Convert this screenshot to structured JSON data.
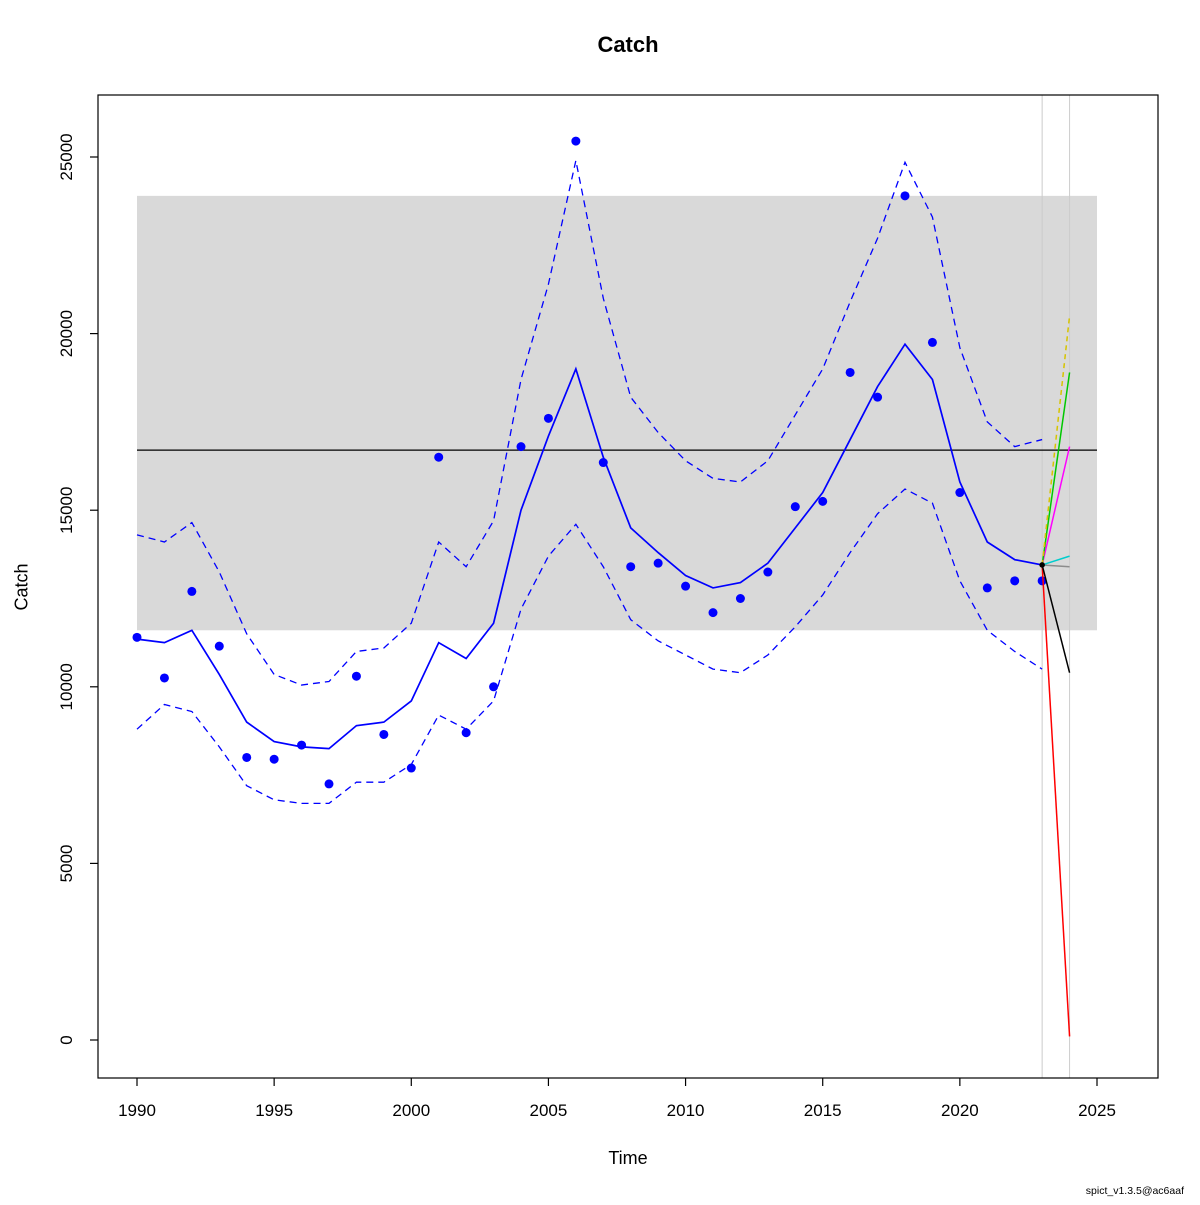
{
  "title": "Catch",
  "xlabel": "Time",
  "ylabel": "Catch",
  "watermark": "spict_v1.3.5@ac6aaf",
  "chart_data": {
    "type": "line",
    "title": "Catch",
    "xlabel": "Time",
    "ylabel": "Catch",
    "xlim": [
      1988.6,
      2027.2
    ],
    "ylim": [
      0,
      26500
    ],
    "grid": false,
    "legend": "none",
    "x_ticks": [
      1990,
      1995,
      2000,
      2005,
      2010,
      2015,
      2020,
      2025
    ],
    "y_ticks": [
      0,
      5000,
      10000,
      15000,
      20000,
      25000
    ],
    "years": [
      1990,
      1991,
      1992,
      1993,
      1994,
      1995,
      1996,
      1997,
      1998,
      1999,
      2000,
      2001,
      2002,
      2003,
      2004,
      2005,
      2006,
      2007,
      2008,
      2009,
      2010,
      2011,
      2012,
      2013,
      2014,
      2015,
      2016,
      2017,
      2018,
      2019,
      2020,
      2021,
      2022,
      2023
    ],
    "series": [
      {
        "name": "ci-upper",
        "type": "line",
        "style": "dashed",
        "color": "#0000ff",
        "values": [
          14300,
          14100,
          14650,
          13250,
          11500,
          10350,
          10050,
          10150,
          11000,
          11100,
          11800,
          14100,
          13400,
          14700,
          18700,
          21400,
          24900,
          21000,
          18200,
          17200,
          16400,
          15900,
          15800,
          16400,
          17700,
          19000,
          20900,
          22700,
          24850,
          23300,
          19600,
          17500,
          16800,
          17000
        ]
      },
      {
        "name": "ci-lower",
        "type": "line",
        "style": "dashed",
        "color": "#0000ff",
        "values": [
          8800,
          9500,
          9300,
          8300,
          7200,
          6800,
          6700,
          6700,
          7300,
          7300,
          7800,
          9200,
          8800,
          9600,
          12200,
          13700,
          14600,
          13400,
          11900,
          11300,
          10900,
          10500,
          10400,
          10900,
          11700,
          12600,
          13800,
          14900,
          15600,
          15200,
          13000,
          11600,
          11000,
          10500
        ]
      },
      {
        "name": "estimated-catch",
        "type": "line",
        "style": "solid",
        "color": "#0000ff",
        "values": [
          11350,
          11250,
          11600,
          10350,
          9000,
          8450,
          8300,
          8250,
          8900,
          9000,
          9600,
          11250,
          10800,
          11800,
          15000,
          17100,
          19000,
          16500,
          14500,
          13800,
          13150,
          12800,
          12950,
          13500,
          14500,
          15500,
          17000,
          18500,
          19700,
          18700,
          15800,
          14100,
          13600,
          13450
        ]
      },
      {
        "name": "observed-catch",
        "type": "points",
        "color": "#0000ff",
        "values": [
          11400,
          10250,
          12700,
          11150,
          8000,
          7950,
          8350,
          7250,
          10300,
          8650,
          7700,
          16500,
          8700,
          10000,
          16800,
          17600,
          25450,
          16350,
          13400,
          13500,
          12850,
          12100,
          12500,
          13250,
          15100,
          15250,
          18900,
          18200,
          23900,
          19750,
          15500,
          12800,
          13000,
          13000
        ]
      }
    ],
    "shaded_band": {
      "x": [
        1990,
        2025
      ],
      "y": [
        11600,
        23900
      ],
      "color": "#d9d9d9"
    },
    "reference_line": {
      "x": [
        1990,
        2025
      ],
      "y": 16700,
      "color": "#000000"
    },
    "vertical_guides": {
      "x": [
        2023,
        2024
      ],
      "color": "#cccccc"
    },
    "forecast": {
      "x": [
        2023,
        2024
      ],
      "start_value": 13450,
      "scenarios": [
        {
          "name": "scenario-red",
          "color": "#ff0000",
          "style": "solid",
          "end_value": 100
        },
        {
          "name": "scenario-black",
          "color": "#000000",
          "style": "solid",
          "end_value": 10400
        },
        {
          "name": "scenario-gray",
          "color": "#8c8c8c",
          "style": "solid",
          "end_value": 13400
        },
        {
          "name": "scenario-cyan",
          "color": "#00cdcd",
          "style": "solid",
          "end_value": 13700
        },
        {
          "name": "scenario-magenta",
          "color": "#ff00ff",
          "style": "solid",
          "end_value": 16800
        },
        {
          "name": "scenario-green",
          "color": "#00c800",
          "style": "solid",
          "end_value": 18900
        },
        {
          "name": "scenario-yellow",
          "color": "#d6c400",
          "style": "dashed",
          "end_value": 20500
        }
      ]
    }
  }
}
